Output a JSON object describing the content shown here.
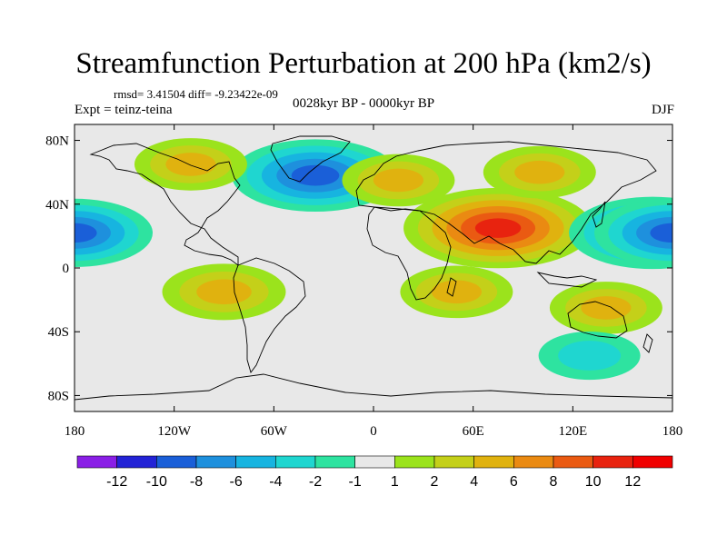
{
  "chart_data": {
    "type": "heatmap",
    "title": "Streamfunction Perturbation at 200 hPa (km2/s)",
    "stats_line": "rmsd= 3.41504 diff= -9.23422e-09",
    "experiment": "Expt = teinz-teina",
    "period": "0028kyr BP - 0000kyr BP",
    "season": "DJF",
    "x_axis": {
      "range": [
        -180,
        180
      ],
      "ticks": [
        -180,
        -120,
        -60,
        0,
        60,
        120,
        180
      ],
      "tick_labels": [
        "180",
        "120W",
        "60W",
        "0",
        "60E",
        "120E",
        "180"
      ]
    },
    "y_axis": {
      "range": [
        -90,
        90
      ],
      "ticks": [
        80,
        40,
        0,
        -40,
        -80
      ],
      "tick_labels": [
        "80N",
        "40N",
        "0",
        "40S",
        "80S"
      ]
    },
    "colorbar": {
      "levels": [
        "-12",
        "-10",
        "-8",
        "-6",
        "-4",
        "-2",
        "-1",
        "1",
        "2",
        "4",
        "6",
        "8",
        "10",
        "12"
      ],
      "colors": [
        "#8a1fe6",
        "#2323d6",
        "#1a5fd8",
        "#1e90dd",
        "#17b4e0",
        "#1fd6d0",
        "#2ee3a0",
        "#e8e8e8",
        "#9be31c",
        "#c4d019",
        "#e0b20f",
        "#ea8a12",
        "#ea5a12",
        "#e8230f",
        "#f00000"
      ]
    },
    "field_features": [
      {
        "name": "South Asia anticyclone",
        "lon": 75,
        "lat": 25,
        "value": 11
      },
      {
        "name": "North Atlantic cyclonic",
        "lon": -35,
        "lat": 58,
        "value": -9
      },
      {
        "name": "West Pacific low",
        "lon": 168,
        "lat": 22,
        "value": -9
      },
      {
        "name": "East Pacific low",
        "lon": -180,
        "lat": 22,
        "value": -8
      },
      {
        "name": "North America high",
        "lon": -110,
        "lat": 65,
        "value": 4
      },
      {
        "name": "Siberia high",
        "lon": 100,
        "lat": 60,
        "value": 4
      },
      {
        "name": "Europe high",
        "lon": 15,
        "lat": 55,
        "value": 4
      },
      {
        "name": "South America high",
        "lon": -90,
        "lat": -15,
        "value": 5
      },
      {
        "name": "Indian Ocean high",
        "lon": 50,
        "lat": -15,
        "value": 4
      },
      {
        "name": "Australia high",
        "lon": 140,
        "lat": -25,
        "value": 4
      },
      {
        "name": "Southern Ocean low",
        "lon": 130,
        "lat": -55,
        "value": -3
      }
    ]
  }
}
